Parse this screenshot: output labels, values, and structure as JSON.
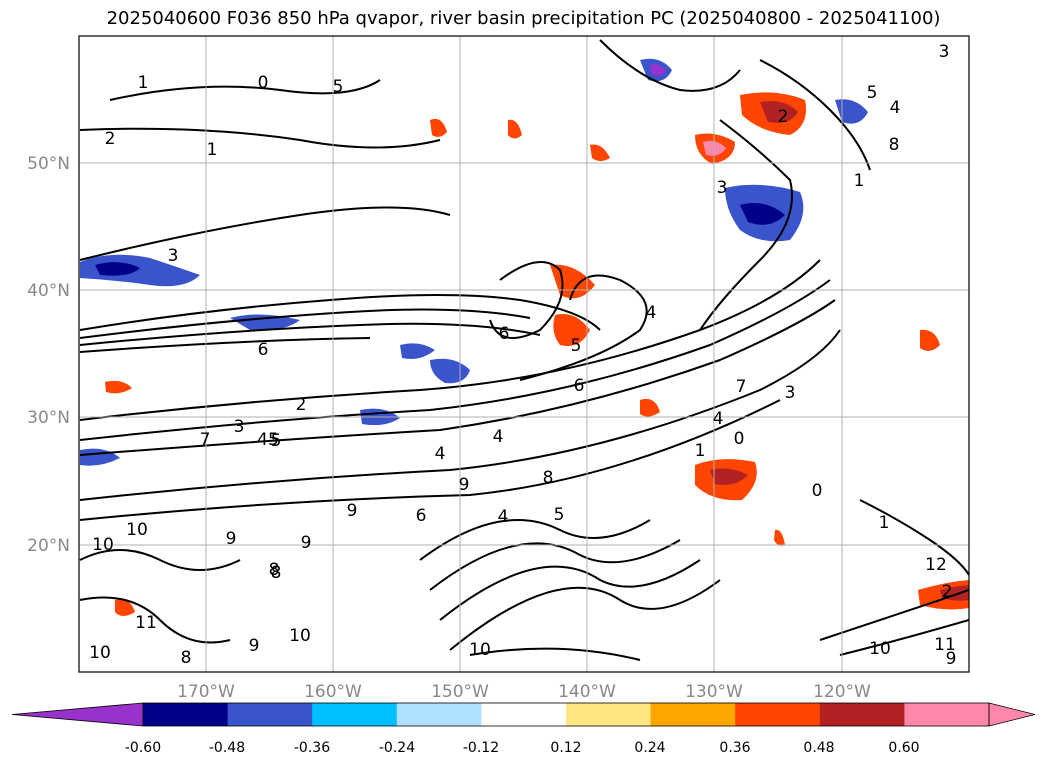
{
  "title": "2025040600 F036 850 hPa qvapor, river basin precipitation PC (2025040800 - 2025041100)",
  "map": {
    "lat_labels": [
      "50°N",
      "40°N",
      "30°N",
      "20°N"
    ],
    "lon_labels": [
      "170°W",
      "160°W",
      "150°W",
      "140°W",
      "130°W",
      "120°W"
    ],
    "lon_range": [
      -180,
      -110
    ],
    "lat_range": [
      10,
      60
    ],
    "grid": true
  },
  "colorbar": {
    "colors": [
      "#9932cc",
      "#00008b",
      "#3a55cc",
      "#00bfff",
      "#b0e0ff",
      "#ffffff",
      "#ffe680",
      "#ffa500",
      "#ff4500",
      "#b22222",
      "#ff88aa",
      "#ff88aa"
    ],
    "tick_labels": [
      "-0.60",
      "-0.48",
      "-0.36",
      "-0.24",
      "-0.12",
      "0.12",
      "0.24",
      "0.36",
      "0.48",
      "0.60"
    ],
    "extend": "both"
  },
  "contour_labels": [
    "1",
    "0",
    "2",
    "1",
    "3",
    "5",
    "4",
    "6",
    "6",
    "5",
    "4",
    "6",
    "2",
    "3",
    "45",
    "5",
    "4",
    "9",
    "8",
    "8",
    "9",
    "6",
    "5",
    "4",
    "7",
    "4",
    "1",
    "0",
    "3",
    "7",
    "10",
    "9",
    "8",
    "9",
    "10",
    "11",
    "10",
    "8",
    "10",
    "9",
    "10",
    "10",
    "11",
    "9",
    "12",
    "1",
    "2",
    "0",
    "3",
    "2",
    "1",
    "8",
    "5",
    "3",
    "4"
  ]
}
